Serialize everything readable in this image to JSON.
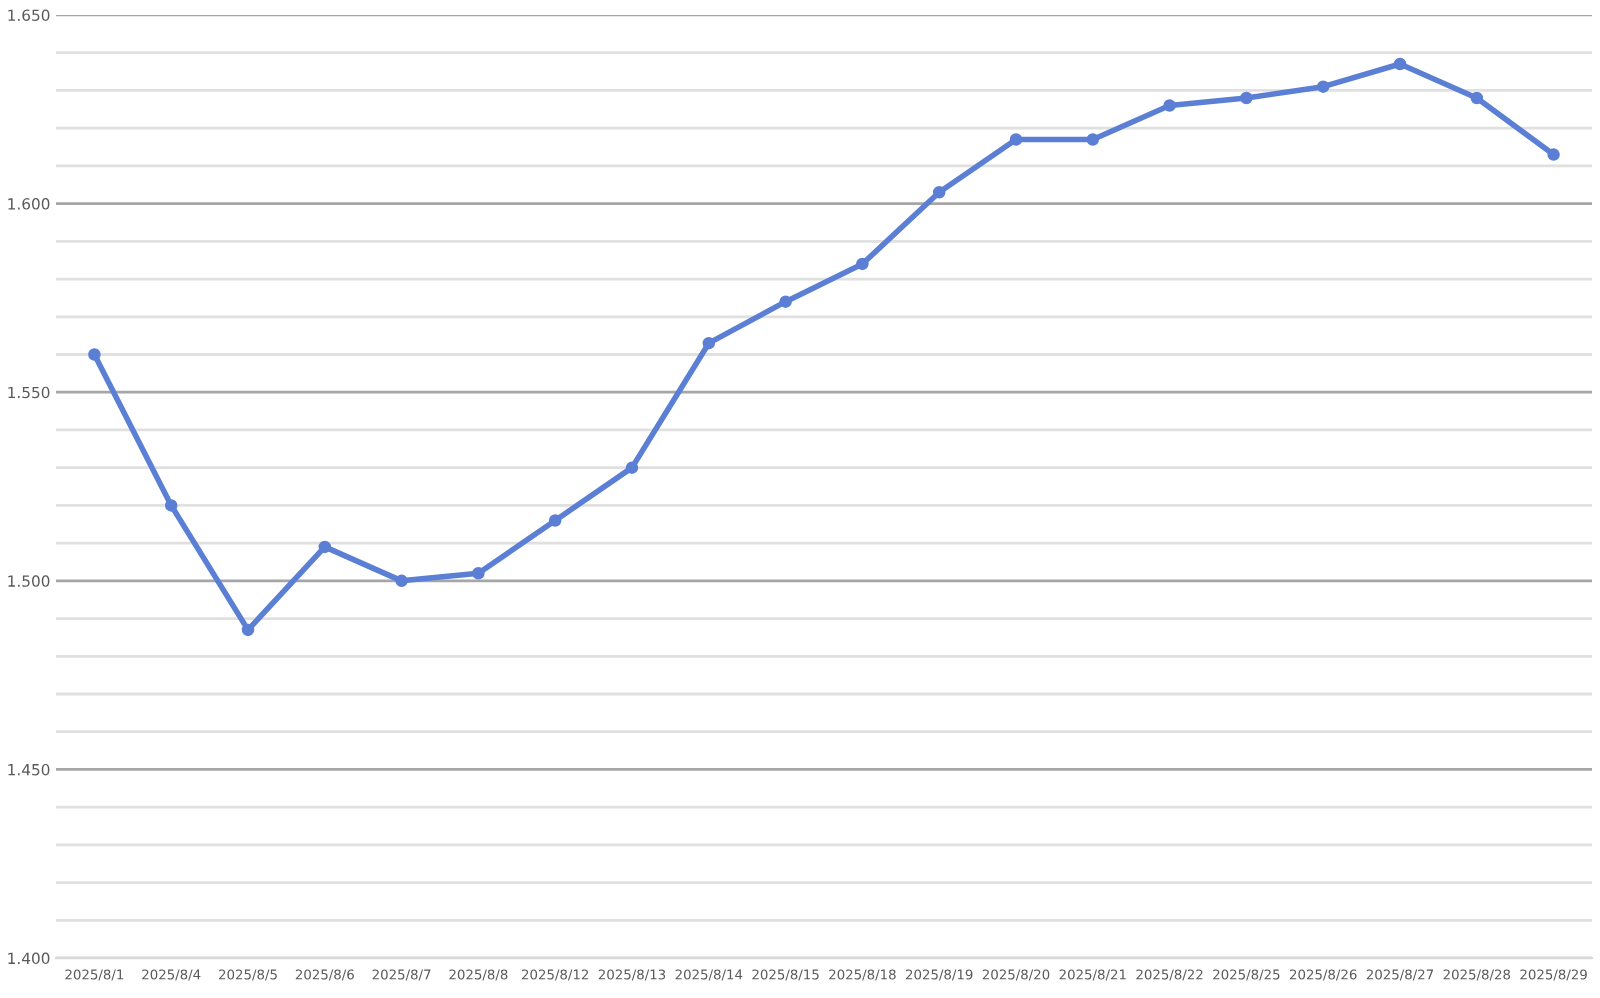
{
  "chart_data": {
    "type": "line",
    "categories": [
      "2025/8/1",
      "2025/8/4",
      "2025/8/5",
      "2025/8/6",
      "2025/8/7",
      "2025/8/8",
      "2025/8/12",
      "2025/8/13",
      "2025/8/14",
      "2025/8/15",
      "2025/8/18",
      "2025/8/19",
      "2025/8/20",
      "2025/8/21",
      "2025/8/22",
      "2025/8/25",
      "2025/8/26",
      "2025/8/27",
      "2025/8/28",
      "2025/8/29"
    ],
    "series": [
      {
        "color": "#5b7fd4",
        "values": [
          1.56,
          1.52,
          1.487,
          1.509,
          1.5,
          1.502,
          1.516,
          1.53,
          1.563,
          1.574,
          1.584,
          1.603,
          1.617,
          1.617,
          1.626,
          1.628,
          1.631,
          1.637,
          1.628,
          1.613
        ]
      }
    ],
    "ylim": [
      1.4,
      1.65
    ],
    "yticks": [
      {
        "value": 1.4,
        "label": "1.400"
      },
      {
        "value": 1.41,
        "label": null
      },
      {
        "value": 1.42,
        "label": null
      },
      {
        "value": 1.43,
        "label": null
      },
      {
        "value": 1.44,
        "label": null
      },
      {
        "value": 1.45,
        "label": "1.450"
      },
      {
        "value": 1.46,
        "label": null
      },
      {
        "value": 1.47,
        "label": null
      },
      {
        "value": 1.48,
        "label": null
      },
      {
        "value": 1.49,
        "label": null
      },
      {
        "value": 1.5,
        "label": "1.500"
      },
      {
        "value": 1.51,
        "label": null
      },
      {
        "value": 1.52,
        "label": null
      },
      {
        "value": 1.53,
        "label": null
      },
      {
        "value": 1.54,
        "label": null
      },
      {
        "value": 1.55,
        "label": "1.550"
      },
      {
        "value": 1.56,
        "label": null
      },
      {
        "value": 1.57,
        "label": null
      },
      {
        "value": 1.58,
        "label": null
      },
      {
        "value": 1.59,
        "label": null
      },
      {
        "value": 1.6,
        "label": "1.600"
      },
      {
        "value": 1.61,
        "label": null
      },
      {
        "value": 1.62,
        "label": null
      },
      {
        "value": 1.63,
        "label": null
      },
      {
        "value": 1.64,
        "label": null
      },
      {
        "value": 1.65,
        "label": "1.650"
      }
    ],
    "grid": "y",
    "marker": "circle",
    "line_style": "solid",
    "legend": false
  }
}
